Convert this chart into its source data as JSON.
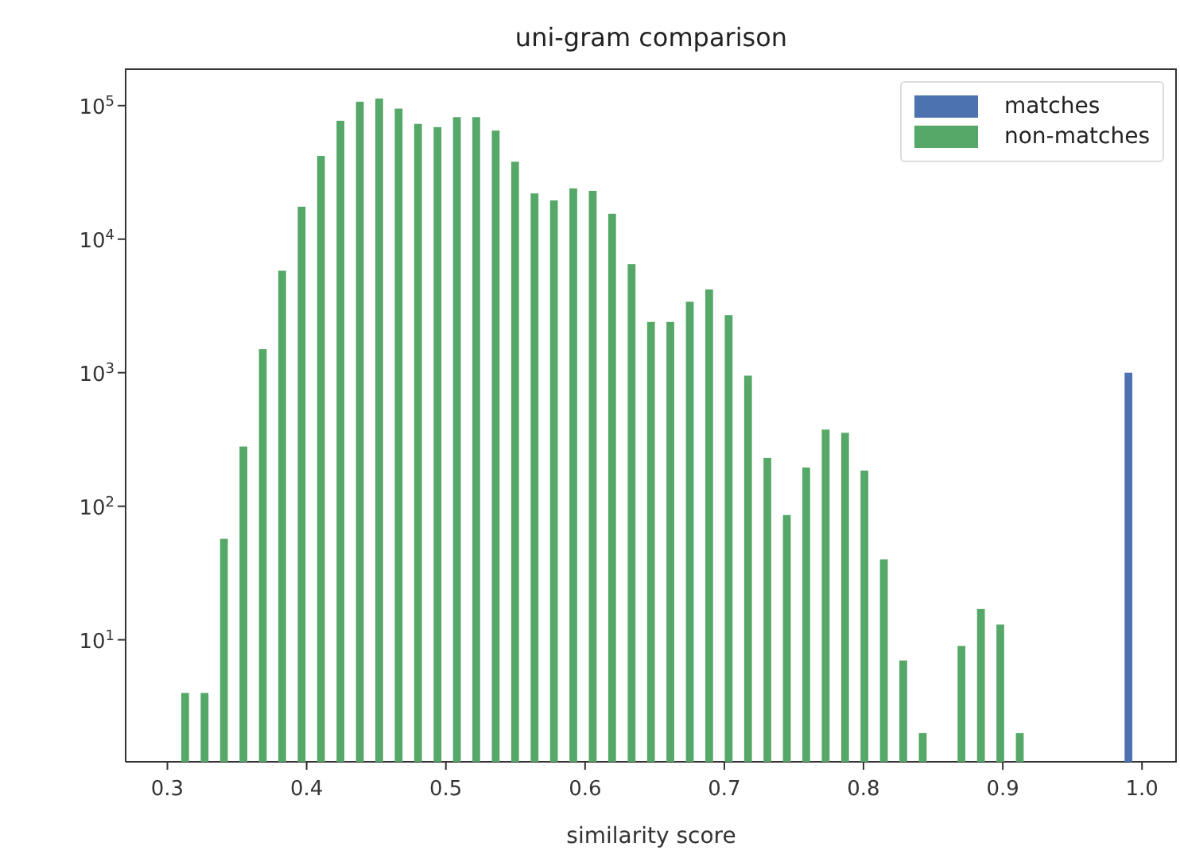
{
  "chart_data": {
    "type": "histogram",
    "title": "uni-gram comparison",
    "xlabel": "similarity score",
    "bins": [
      0.303,
      0.3169,
      0.3309,
      0.3448,
      0.3588,
      0.3727,
      0.3866,
      0.4006,
      0.4145,
      0.4285,
      0.4424,
      0.4563,
      0.4703,
      0.4842,
      0.4982,
      0.5121,
      0.526,
      0.54,
      0.5539,
      0.5679,
      0.5818,
      0.5957,
      0.6097,
      0.6236,
      0.6376,
      0.6515,
      0.6654,
      0.6794,
      0.6933,
      0.7073,
      0.7212,
      0.7351,
      0.7491,
      0.763,
      0.777,
      0.7909,
      0.8048,
      0.8188,
      0.8327,
      0.8467,
      0.8606,
      0.8745,
      0.8885,
      0.9024,
      0.9164,
      0.9303,
      0.9442,
      0.9582,
      0.9721,
      0.9861,
      1.0
    ],
    "series": [
      {
        "name": "matches",
        "color": "#4c72b0",
        "values": [
          null,
          null,
          null,
          null,
          null,
          null,
          null,
          null,
          null,
          null,
          null,
          null,
          null,
          null,
          null,
          null,
          null,
          null,
          null,
          null,
          null,
          null,
          null,
          null,
          null,
          null,
          null,
          null,
          null,
          null,
          null,
          null,
          null,
          null,
          null,
          null,
          null,
          null,
          null,
          null,
          null,
          null,
          null,
          null,
          null,
          null,
          null,
          null,
          null,
          1000
        ]
      },
      {
        "name": "non-matches",
        "color": "#55a868",
        "values": [
          4,
          4,
          57,
          280,
          1500,
          5800,
          17500,
          42000,
          77000,
          107000,
          113000,
          95000,
          73000,
          69000,
          82000,
          82000,
          65000,
          38000,
          22000,
          19500,
          24000,
          23000,
          15500,
          6500,
          2400,
          2400,
          3400,
          4200,
          2700,
          950,
          230,
          86,
          195,
          375,
          355,
          185,
          40,
          7,
          2,
          null,
          9,
          17,
          13,
          2,
          null,
          null,
          null,
          null,
          null,
          null
        ]
      }
    ],
    "log": "y",
    "xlim": [
      0.27,
      1.025
    ],
    "xticks": [
      0.3,
      0.4,
      0.5,
      0.6,
      0.7,
      0.8,
      0.9,
      {
        "value": 1,
        "label": "1.0"
      }
    ],
    "ylim": [
      1.22,
      190000
    ],
    "yticks": [
      {
        "value": 10,
        "label": "10$^{1}$"
      },
      {
        "value": 100,
        "label": "10$^{2}$"
      },
      {
        "value": 1000,
        "label": "10$^{3}$"
      },
      {
        "value": 10000,
        "label": "10$^{4}$"
      },
      {
        "value": 100000,
        "label": "10$^{5}$"
      }
    ],
    "legend": "top right",
    "grid": false
  }
}
